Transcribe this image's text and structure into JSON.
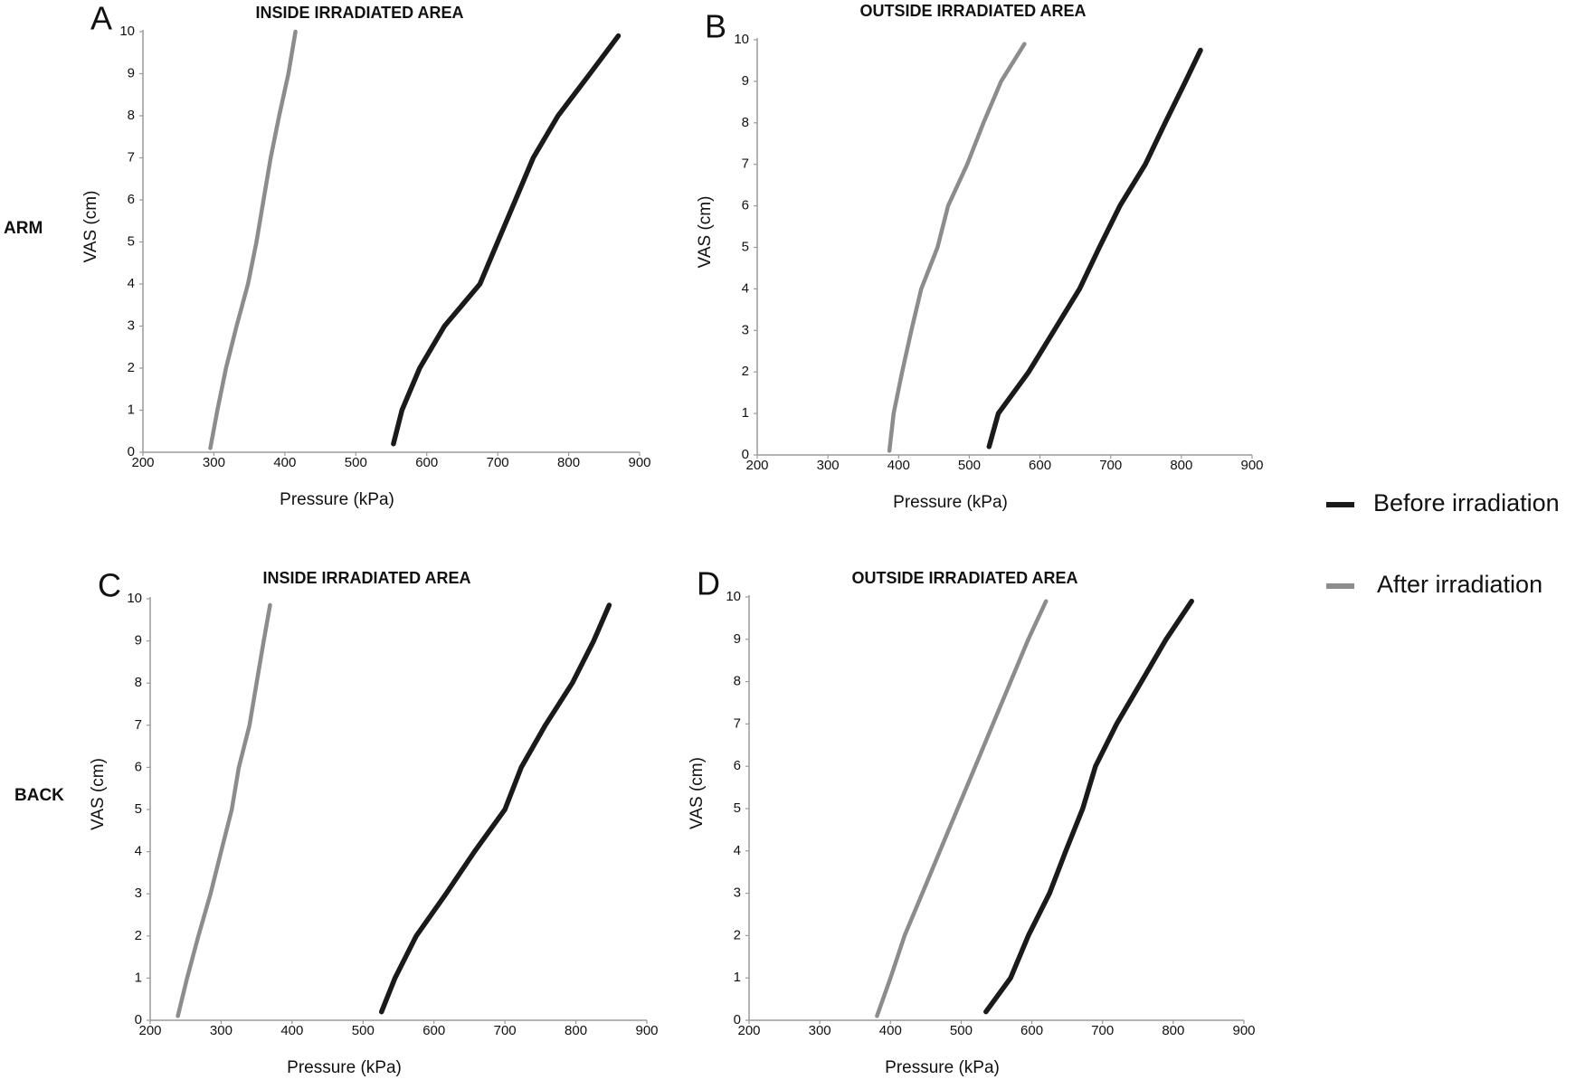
{
  "chart_data": [
    {
      "type": "line",
      "panel": "A",
      "title": "INSIDE IRRADIATED AREA",
      "x_label": "Pressure (kPa)",
      "y_label": "VAS (cm)",
      "xlim": [
        200,
        900
      ],
      "ylim": [
        0,
        10
      ],
      "xticks": [
        200,
        300,
        400,
        500,
        600,
        700,
        800,
        900
      ],
      "yticks": [
        0,
        1,
        2,
        3,
        4,
        5,
        6,
        7,
        8,
        9,
        10
      ],
      "series": [
        {
          "name": "Before irradiation",
          "color": "#1a1a1a",
          "x": [
            553,
            565,
            590,
            625,
            675,
            700,
            725,
            750,
            785,
            830,
            870
          ],
          "values": [
            0.2,
            1,
            2,
            3,
            4,
            5,
            6,
            7,
            8,
            9,
            9.9
          ]
        },
        {
          "name": "After irradiation",
          "color": "#8c8c8c",
          "x": [
            295,
            305,
            317,
            332,
            348,
            360,
            370,
            380,
            392,
            405,
            415
          ],
          "values": [
            0.1,
            1,
            2,
            3,
            4,
            5,
            6,
            7,
            8,
            9,
            10
          ]
        }
      ]
    },
    {
      "type": "line",
      "panel": "B",
      "title": "OUTSIDE IRRADIATED AREA",
      "x_label": "Pressure (kPa)",
      "y_label": "VAS (cm)",
      "xlim": [
        200,
        900
      ],
      "ylim": [
        0,
        10
      ],
      "xticks": [
        200,
        300,
        400,
        500,
        600,
        700,
        800,
        900
      ],
      "yticks": [
        0,
        1,
        2,
        3,
        4,
        5,
        6,
        7,
        8,
        9,
        10
      ],
      "series": [
        {
          "color": "#1a1a1a",
          "x": [
            528,
            541,
            584,
            620,
            656,
            684,
            713,
            749,
            777,
            806,
            827
          ],
          "values": [
            0.2,
            1,
            2,
            3,
            4,
            5,
            6,
            7,
            8,
            9,
            9.75
          ]
        },
        {
          "color": "#8c8c8c",
          "x": [
            387,
            393,
            405,
            418,
            432,
            455,
            470,
            497,
            520,
            545,
            578
          ],
          "values": [
            0.1,
            1,
            2,
            3,
            4,
            5,
            6,
            7,
            8,
            9,
            9.9
          ]
        }
      ]
    },
    {
      "type": "line",
      "panel": "C",
      "title": "INSIDE IRRADIATED AREA",
      "x_label": "Pressure (kPa)",
      "y_label": "VAS (cm)",
      "xlim": [
        200,
        900
      ],
      "ylim": [
        0,
        10
      ],
      "xticks": [
        200,
        300,
        400,
        500,
        600,
        700,
        800,
        900
      ],
      "yticks": [
        0,
        1,
        2,
        3,
        4,
        5,
        6,
        7,
        8,
        9,
        10
      ],
      "series": [
        {
          "color": "#1a1a1a",
          "x": [
            526,
            545,
            575,
            617,
            657,
            700,
            723,
            757,
            795,
            825,
            847
          ],
          "values": [
            0.2,
            1,
            2,
            3,
            4,
            5,
            6,
            7,
            8,
            9,
            9.85
          ]
        },
        {
          "color": "#8c8c8c",
          "x": [
            239,
            252,
            268,
            285,
            300,
            315,
            325,
            340,
            350,
            360,
            369
          ],
          "values": [
            0.1,
            1,
            2,
            3,
            4,
            5,
            6,
            7,
            8,
            9,
            9.85
          ]
        }
      ]
    },
    {
      "type": "line",
      "panel": "D",
      "title": "OUTSIDE IRRADIATED AREA",
      "x_label": "Pressure (kPa)",
      "y_label": "VAS (cm)",
      "xlim": [
        200,
        900
      ],
      "ylim": [
        0,
        10
      ],
      "xticks": [
        200,
        300,
        400,
        500,
        600,
        700,
        800,
        900
      ],
      "yticks": [
        0,
        1,
        2,
        3,
        4,
        5,
        6,
        7,
        8,
        9,
        10
      ],
      "series": [
        {
          "color": "#1a1a1a",
          "x": [
            535,
            570,
            595,
            625,
            648,
            672,
            690,
            720,
            755,
            790,
            826
          ],
          "values": [
            0.2,
            1,
            2,
            3,
            4,
            5,
            6,
            7,
            8,
            9,
            9.9
          ]
        },
        {
          "color": "#8c8c8c",
          "x": [
            381,
            400,
            420,
            445,
            470,
            495,
            520,
            545,
            570,
            595,
            620
          ],
          "values": [
            0.1,
            1,
            2,
            3,
            4,
            5,
            6,
            7,
            8,
            9,
            9.9
          ]
        }
      ]
    }
  ],
  "row_labels": [
    "ARM",
    "BACK"
  ]
}
